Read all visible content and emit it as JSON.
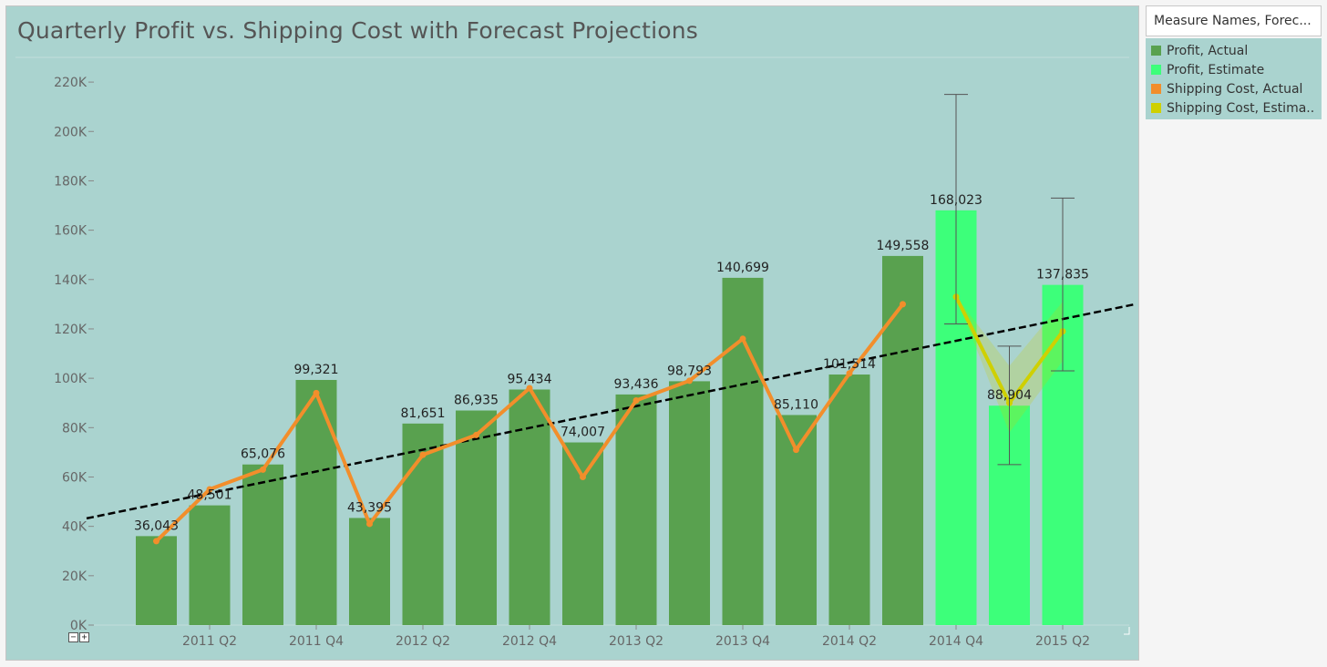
{
  "chart_title": "Quarterly Profit vs. Shipping Cost with Forecast Projections",
  "legend": {
    "title": "Measure Names, Forec...",
    "items": [
      {
        "label": "Profit, Actual",
        "color": "#59a14f"
      },
      {
        "label": "Profit, Estimate",
        "color": "#3dff7a"
      },
      {
        "label": "Shipping Cost, Actual",
        "color": "#f28e2b"
      },
      {
        "label": "Shipping Cost, Estima..",
        "color": "#cfd000"
      }
    ]
  },
  "zoom_controls": {
    "minus": "−",
    "plus": "+"
  },
  "chart_data": {
    "type": "bar",
    "title": "Quarterly Profit vs. Shipping Cost with Forecast Projections",
    "ylim": [
      0,
      230000
    ],
    "yticks": [
      0,
      20000,
      40000,
      60000,
      80000,
      100000,
      120000,
      140000,
      160000,
      180000,
      200000,
      220000
    ],
    "ytick_labels": [
      "0K",
      "20K",
      "40K",
      "60K",
      "80K",
      "100K",
      "120K",
      "140K",
      "160K",
      "180K",
      "200K",
      "220K"
    ],
    "grid": false,
    "legend_position": "right",
    "categories": [
      "2011 Q1",
      "2011 Q2",
      "2011 Q3",
      "2011 Q4",
      "2012 Q1",
      "2012 Q2",
      "2012 Q3",
      "2012 Q4",
      "2013 Q1",
      "2013 Q2",
      "2013 Q3",
      "2013 Q4",
      "2014 Q1",
      "2014 Q2",
      "2014 Q3",
      "2014 Q4",
      "2015 Q1",
      "2015 Q2"
    ],
    "xtick_labels": [
      {
        "category": "2011 Q2",
        "label": "2011 Q2"
      },
      {
        "category": "2011 Q4",
        "label": "2011 Q4"
      },
      {
        "category": "2012 Q2",
        "label": "2012 Q2"
      },
      {
        "category": "2012 Q4",
        "label": "2012 Q4"
      },
      {
        "category": "2013 Q2",
        "label": "2013 Q2"
      },
      {
        "category": "2013 Q4",
        "label": "2013 Q4"
      },
      {
        "category": "2014 Q2",
        "label": "2014 Q2"
      },
      {
        "category": "2014 Q4",
        "label": "2014 Q4"
      },
      {
        "category": "2015 Q2",
        "label": "2015 Q2"
      }
    ],
    "series": [
      {
        "name": "Profit, Actual",
        "type": "bar",
        "color": "#59a14f",
        "values": [
          36043,
          48501,
          65076,
          99321,
          43395,
          81651,
          86935,
          95434,
          74007,
          93436,
          98793,
          140699,
          85110,
          101514,
          149558,
          null,
          null,
          null
        ],
        "labels": [
          "36,043",
          "48,501",
          "65,076",
          "99,321",
          "43,395",
          "81,651",
          "86,935",
          "95,434",
          "74,007",
          "93,436",
          "98,793",
          "140,699",
          "85,110",
          "101,514",
          "149,558",
          "",
          "",
          ""
        ]
      },
      {
        "name": "Profit, Estimate",
        "type": "bar",
        "color": "#3dff7a",
        "values": [
          null,
          null,
          null,
          null,
          null,
          null,
          null,
          null,
          null,
          null,
          null,
          null,
          null,
          null,
          null,
          168023,
          88904,
          137835
        ],
        "labels": [
          "",
          "",
          "",
          "",
          "",
          "",
          "",
          "",
          "",
          "",
          "",
          "",
          "",
          "",
          "",
          "168,023",
          "88,904",
          "137,835"
        ],
        "error_low": [
          null,
          null,
          null,
          null,
          null,
          null,
          null,
          null,
          null,
          null,
          null,
          null,
          null,
          null,
          null,
          122000,
          65000,
          103000
        ],
        "error_high": [
          null,
          null,
          null,
          null,
          null,
          null,
          null,
          null,
          null,
          null,
          null,
          null,
          null,
          null,
          null,
          215000,
          113000,
          173000
        ]
      },
      {
        "name": "Shipping Cost, Actual",
        "type": "line",
        "color": "#f28e2b",
        "values": [
          34000,
          55000,
          63000,
          94000,
          41000,
          69000,
          77000,
          96000,
          60000,
          91000,
          99000,
          116000,
          71000,
          102000,
          130000,
          null,
          null,
          null
        ]
      },
      {
        "name": "Shipping Cost, Estima..",
        "type": "line",
        "color": "#cfd000",
        "values": [
          null,
          null,
          null,
          null,
          null,
          null,
          null,
          null,
          null,
          null,
          null,
          null,
          null,
          null,
          null,
          133000,
          90000,
          119000
        ],
        "band_low": [
          null,
          null,
          null,
          null,
          null,
          null,
          null,
          null,
          null,
          null,
          null,
          null,
          null,
          null,
          null,
          133000,
          78000,
          107000
        ],
        "band_high": [
          null,
          null,
          null,
          null,
          null,
          null,
          null,
          null,
          null,
          null,
          null,
          null,
          null,
          null,
          null,
          133000,
          105000,
          131000
        ]
      }
    ],
    "trend_line": {
      "style": "dashed",
      "color": "#000000",
      "start": {
        "category": "2011 Q1",
        "y": 49000
      },
      "end": {
        "category": "2015 Q2",
        "y": 124000
      }
    }
  }
}
